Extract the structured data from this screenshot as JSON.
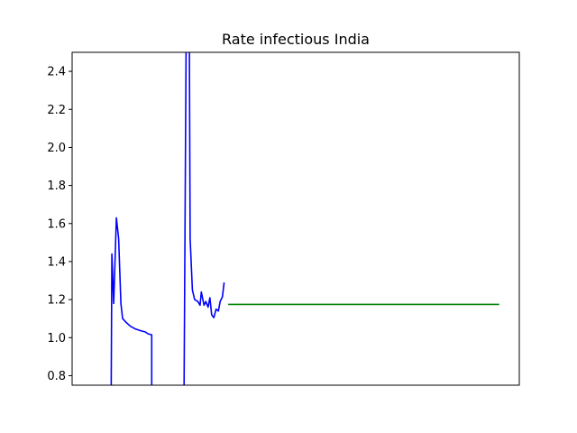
{
  "chart_data": {
    "type": "line",
    "title": "Rate infectious India",
    "xlabel": "",
    "ylabel": "",
    "ylim": [
      0.75,
      2.5
    ],
    "xlim": [
      0,
      100
    ],
    "yticks": [
      "0.8",
      "1.0",
      "1.2",
      "1.4",
      "1.6",
      "1.8",
      "2.0",
      "2.2",
      "2.4"
    ],
    "ytick_values": [
      0.8,
      1.0,
      1.2,
      1.4,
      1.6,
      1.8,
      2.0,
      2.2,
      2.4
    ],
    "grid": false,
    "series": [
      {
        "color": "#0000ff",
        "segments": [
          [
            [
              8.7,
              0.6
            ],
            [
              8.9,
              1.44
            ],
            [
              9.3,
              1.18
            ],
            [
              9.9,
              1.63
            ],
            [
              10.4,
              1.52
            ],
            [
              10.9,
              1.18
            ],
            [
              11.3,
              1.1
            ],
            [
              12.1,
              1.08
            ],
            [
              13.0,
              1.06
            ],
            [
              14.2,
              1.045
            ],
            [
              15.5,
              1.035
            ],
            [
              16.4,
              1.03
            ],
            [
              17.0,
              1.02
            ],
            [
              17.8,
              1.015
            ],
            [
              17.8,
              0.6
            ]
          ],
          [
            [
              25.0,
              0.6
            ],
            [
              25.5,
              2.6
            ],
            [
              26.2,
              2.6
            ],
            [
              26.4,
              1.52
            ],
            [
              26.9,
              1.25
            ],
            [
              27.4,
              1.2
            ],
            [
              28.1,
              1.19
            ],
            [
              28.6,
              1.17
            ],
            [
              28.9,
              1.24
            ],
            [
              29.5,
              1.17
            ],
            [
              29.9,
              1.19
            ],
            [
              30.4,
              1.16
            ],
            [
              30.8,
              1.21
            ],
            [
              31.2,
              1.12
            ],
            [
              31.7,
              1.105
            ],
            [
              32.2,
              1.15
            ],
            [
              32.7,
              1.14
            ],
            [
              33.1,
              1.19
            ],
            [
              33.6,
              1.215
            ],
            [
              34.0,
              1.29
            ]
          ]
        ]
      },
      {
        "color": "#008000",
        "segments": [
          [
            [
              34.9,
              1.175
            ],
            [
              95.5,
              1.175
            ]
          ]
        ]
      }
    ]
  }
}
